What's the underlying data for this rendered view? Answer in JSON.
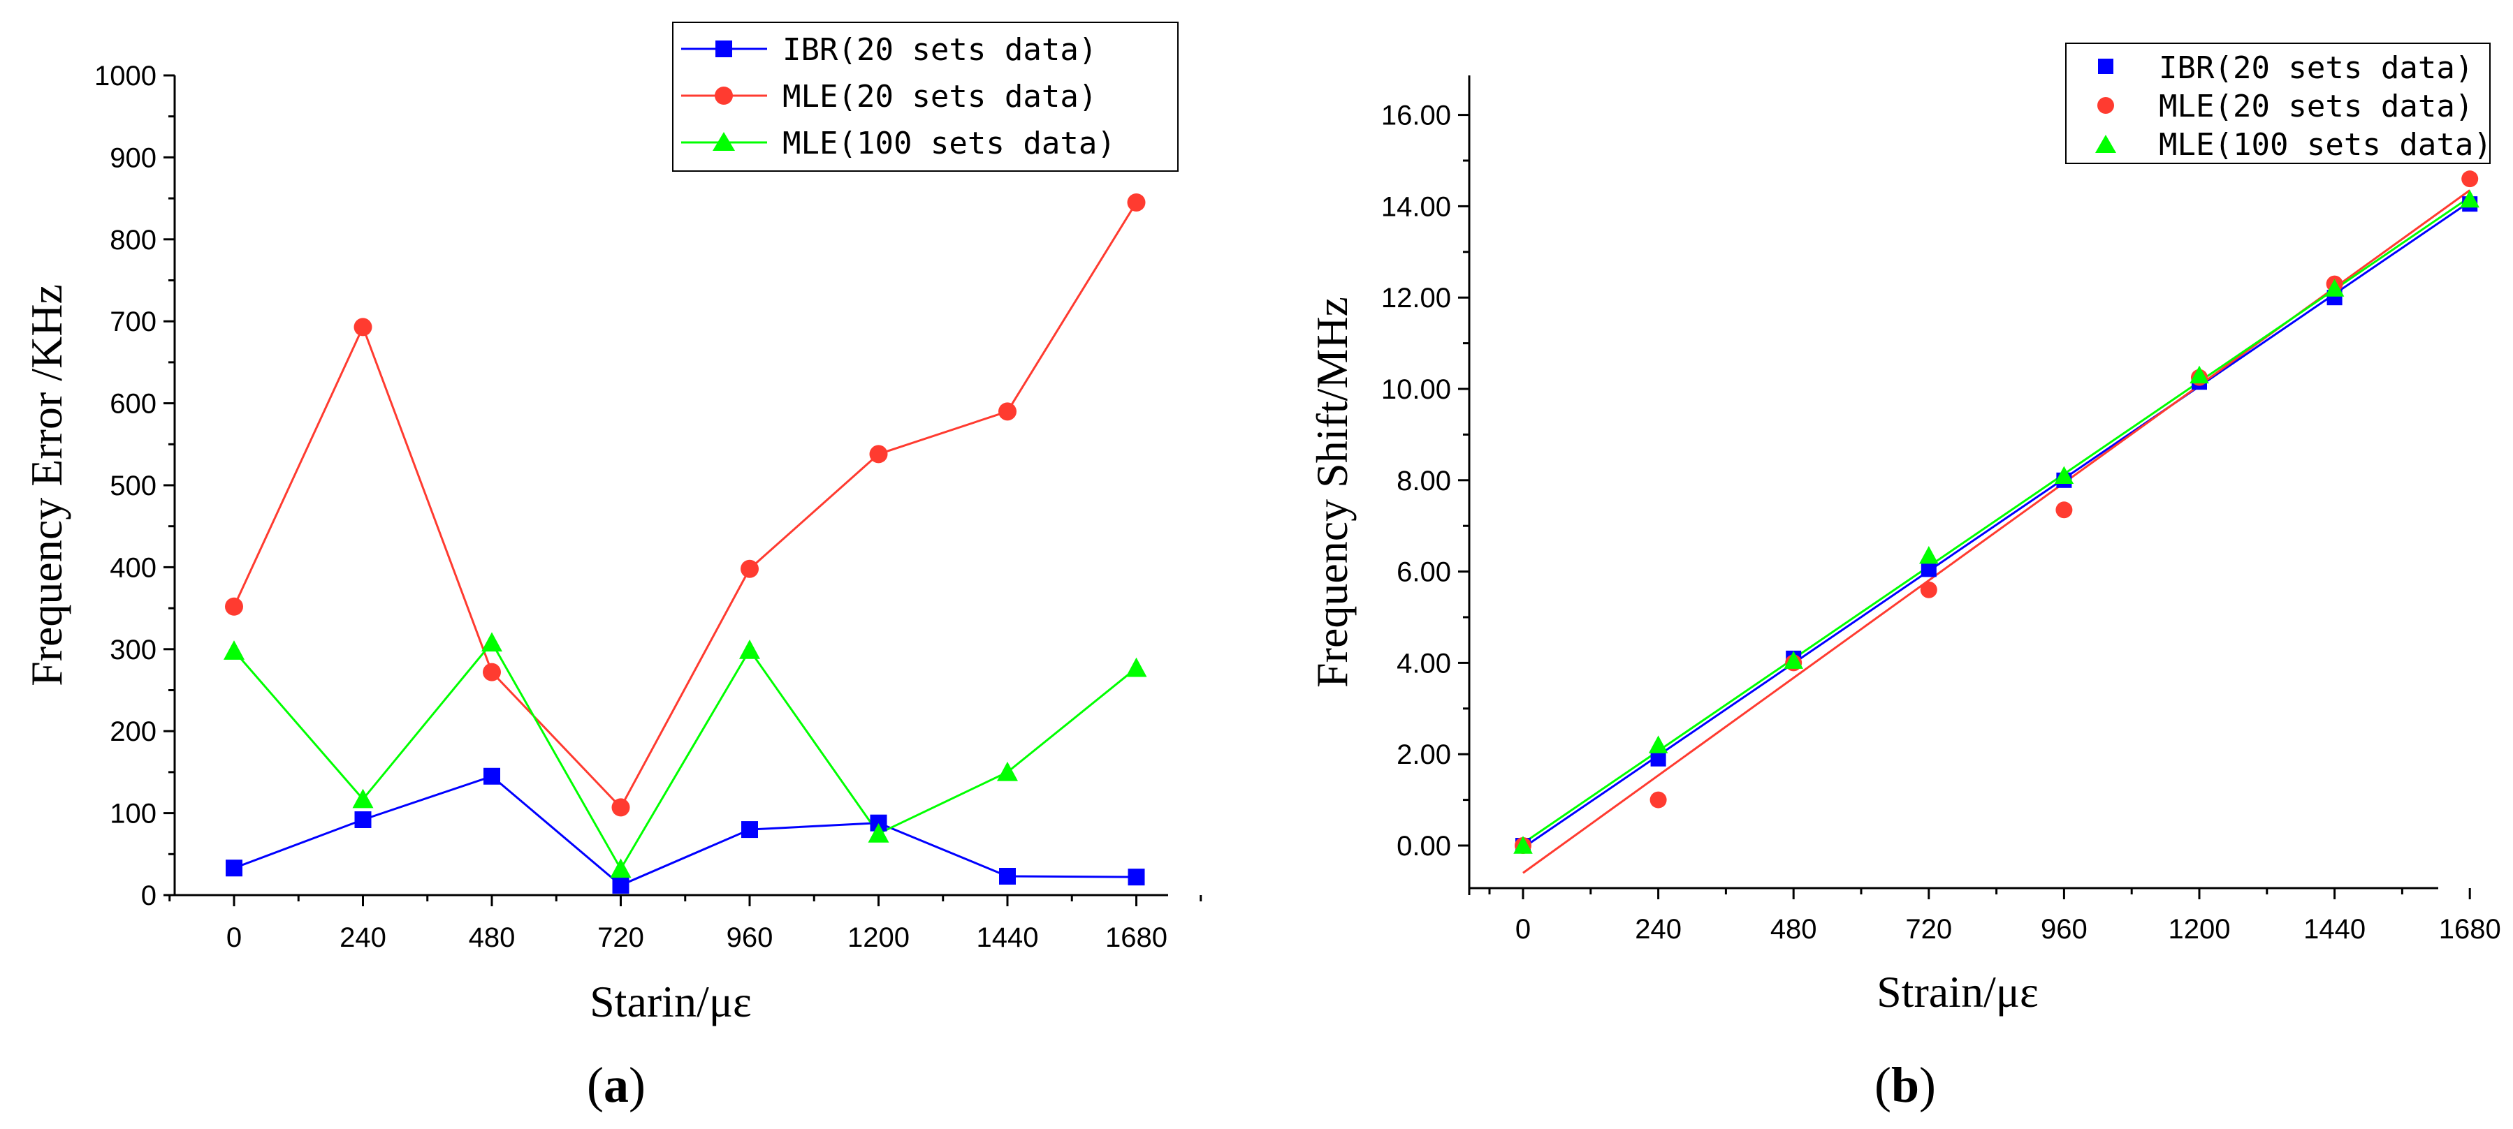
{
  "chart_data": [
    {
      "type": "line",
      "panel_label": "a",
      "xlabel": "Starin/με",
      "ylabel": "Frequency Error /KHz",
      "x": [
        0,
        240,
        480,
        720,
        960,
        1200,
        1440,
        1680
      ],
      "xticks": [
        "0",
        "240",
        "480",
        "720",
        "960",
        "1200",
        "1440",
        "1680"
      ],
      "ylim": [
        0,
        1000
      ],
      "yticks": [
        "0",
        "100",
        "200",
        "300",
        "400",
        "500",
        "600",
        "700",
        "800",
        "900",
        "1000"
      ],
      "legend_position": "top-right",
      "series": [
        {
          "name": "IBR(20 sets data)",
          "color": "#0000ff",
          "marker": "square",
          "values": [
            33,
            92,
            145,
            12,
            80,
            88,
            23,
            22
          ]
        },
        {
          "name": "MLE(20 sets data)",
          "color": "#ff3b30",
          "marker": "circle",
          "values": [
            352,
            693,
            272,
            107,
            398,
            538,
            590,
            845
          ]
        },
        {
          "name": "MLE(100 sets data)",
          "color": "#00ff00",
          "marker": "triangle",
          "values": [
            298,
            117,
            308,
            32,
            299,
            75,
            150,
            277
          ]
        }
      ]
    },
    {
      "type": "scatter",
      "panel_label": "b",
      "xlabel": "Strain/με",
      "ylabel": "Frequency Shift/MHz",
      "x": [
        0,
        240,
        480,
        720,
        960,
        1200,
        1440,
        1680
      ],
      "xticks": [
        "0",
        "240",
        "480",
        "720",
        "960",
        "1200",
        "1440",
        "1680"
      ],
      "ylim": [
        -1,
        17
      ],
      "yticks": [
        "0.00",
        "2.00",
        "4.00",
        "6.00",
        "8.00",
        "10.00",
        "12.00",
        "14.00",
        "16.00"
      ],
      "legend_position": "top-right",
      "series": [
        {
          "name": "IBR(20 sets data)",
          "color": "#0000ff",
          "marker": "square",
          "values": [
            0.0,
            1.9,
            4.1,
            6.05,
            8.0,
            10.15,
            12.0,
            14.05
          ],
          "fit": [
            -0.05,
            14.1
          ]
        },
        {
          "name": "MLE(20 sets data)",
          "color": "#ff3b30",
          "marker": "circle",
          "values": [
            0.0,
            1.0,
            4.0,
            5.6,
            7.35,
            10.25,
            12.3,
            14.6
          ],
          "fit": [
            -0.6,
            14.35
          ]
        },
        {
          "name": "MLE(100 sets data)",
          "color": "#00ff00",
          "marker": "triangle",
          "values": [
            0.0,
            2.2,
            4.05,
            6.35,
            8.1,
            10.3,
            12.2,
            14.15
          ],
          "fit": [
            0.05,
            14.2
          ]
        }
      ]
    }
  ]
}
